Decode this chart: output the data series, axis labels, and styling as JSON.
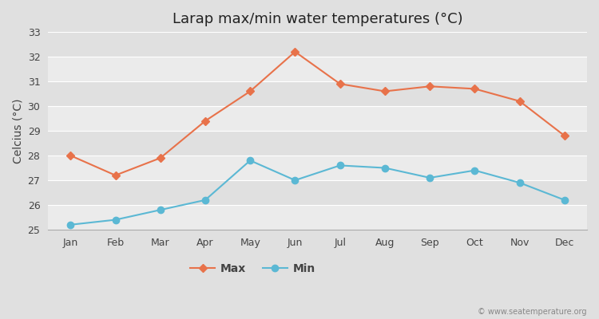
{
  "title": "Larap max/min water temperatures (°C)",
  "ylabel": "Celcius (°C)",
  "months": [
    "Jan",
    "Feb",
    "Mar",
    "Apr",
    "May",
    "Jun",
    "Jul",
    "Aug",
    "Sep",
    "Oct",
    "Nov",
    "Dec"
  ],
  "max_temps": [
    28.0,
    27.2,
    27.9,
    29.4,
    30.6,
    32.2,
    30.9,
    30.6,
    30.8,
    30.7,
    30.2,
    28.8
  ],
  "min_temps": [
    25.2,
    25.4,
    25.8,
    26.2,
    27.8,
    27.0,
    27.6,
    27.5,
    27.1,
    27.4,
    26.9,
    26.2
  ],
  "max_color": "#e8724a",
  "min_color": "#5bb8d4",
  "outer_bg_color": "#e0e0e0",
  "plot_bg_light": "#ebebeb",
  "plot_bg_dark": "#e0e0e0",
  "grid_color": "#ffffff",
  "ylim": [
    25,
    33
  ],
  "yticks": [
    25,
    26,
    27,
    28,
    29,
    30,
    31,
    32,
    33
  ],
  "watermark": "© www.seatemperature.org",
  "legend_labels": [
    "Max",
    "Min"
  ],
  "marker_style": "D",
  "min_marker_style": "o",
  "marker_size": 5,
  "min_marker_size": 6,
  "line_width": 1.5,
  "title_fontsize": 13,
  "label_fontsize": 10,
  "tick_fontsize": 9
}
